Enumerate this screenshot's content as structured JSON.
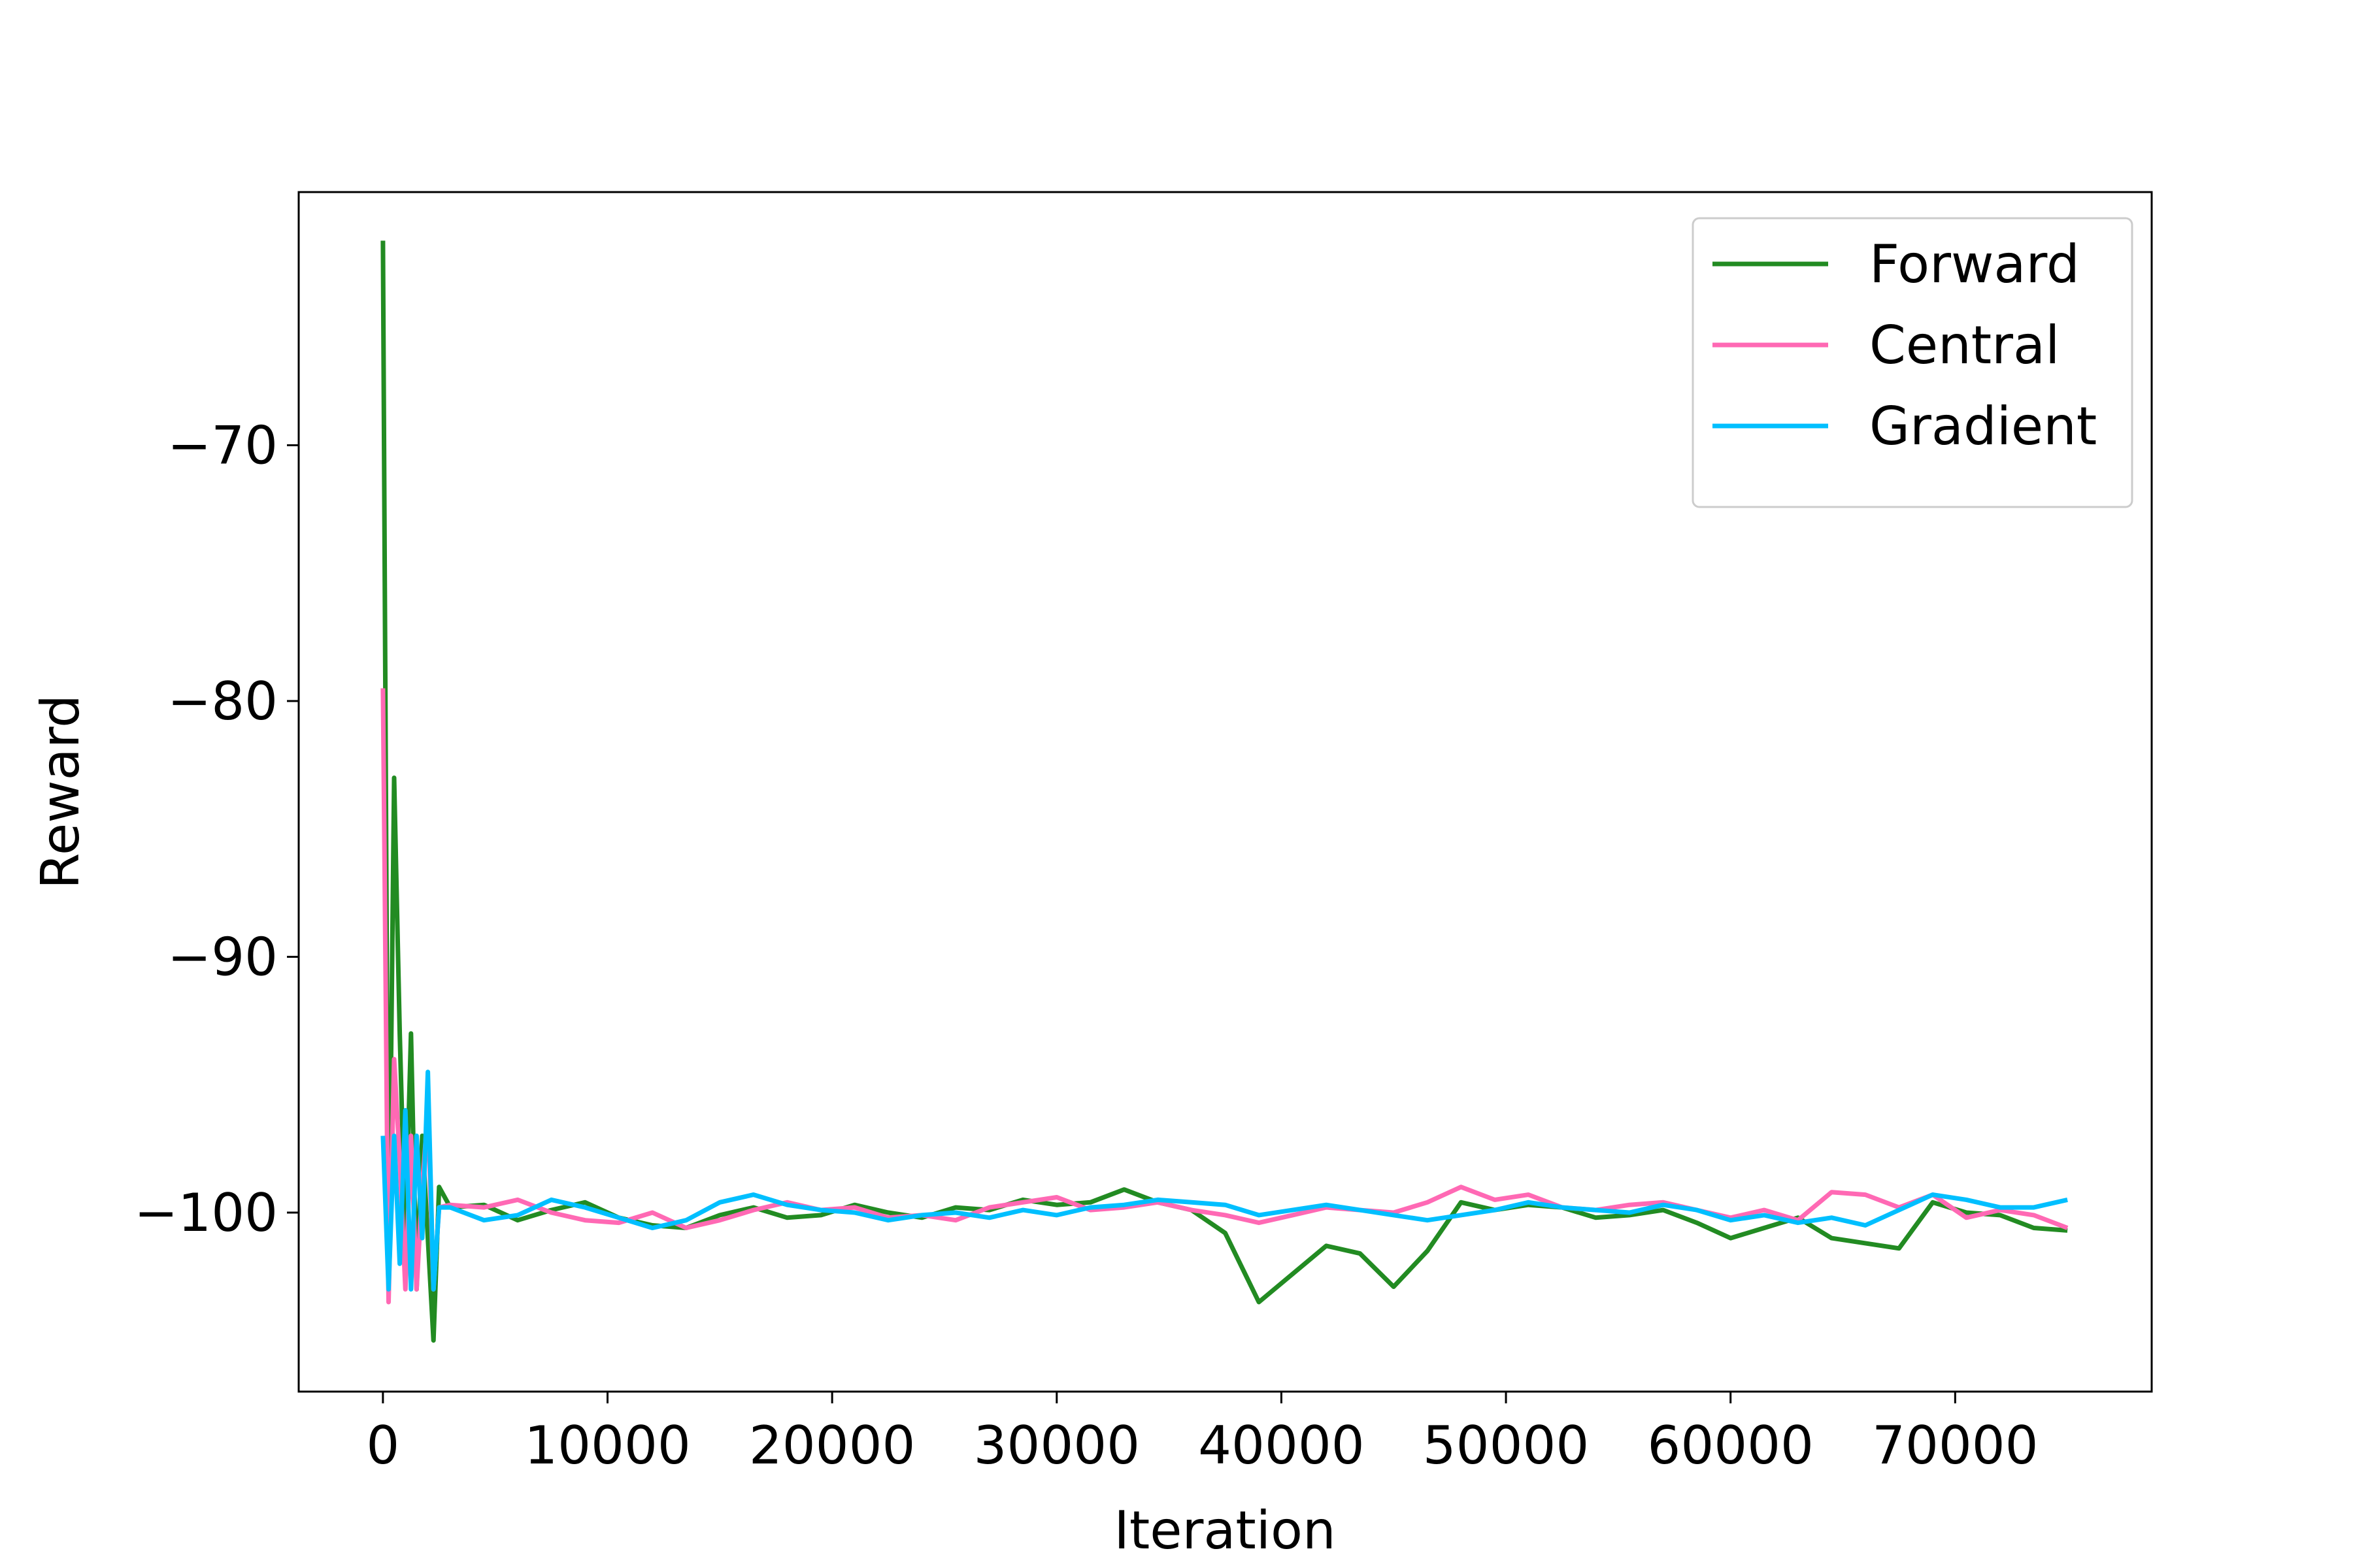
{
  "chart_data": {
    "type": "line",
    "xlabel": "Iteration",
    "ylabel": "Reward",
    "x": [
      0,
      250,
      500,
      750,
      1000,
      1250,
      1500,
      1750,
      2000,
      2250,
      2500,
      3000,
      4500,
      6000,
      7500,
      9000,
      10500,
      12000,
      13500,
      15000,
      16500,
      18000,
      19500,
      21000,
      22500,
      24000,
      25500,
      27000,
      28500,
      30000,
      31500,
      33000,
      34500,
      36000,
      37500,
      39000,
      40500,
      42000,
      43500,
      45000,
      46500,
      48000,
      49500,
      51000,
      52500,
      54000,
      55500,
      57000,
      58500,
      60000,
      61500,
      63000,
      64500,
      66000,
      67500,
      69000,
      70500,
      72000,
      73500,
      75000
    ],
    "series": [
      {
        "name": "Forward",
        "color": "#228b22",
        "values": [
          -62,
          -103,
          -83,
          -93,
          -101,
          -93,
          -103,
          -97,
          -101,
          -105,
          -99,
          -99.8,
          -99.7,
          -100.3,
          -99.9,
          -99.6,
          -100.2,
          -100.5,
          -100.6,
          -100.1,
          -99.8,
          -100.2,
          -100.1,
          -99.7,
          -100.0,
          -100.2,
          -99.8,
          -99.9,
          -99.5,
          -99.7,
          -99.6,
          -99.1,
          -99.6,
          -99.9,
          -100.8,
          -103.5,
          -102.4,
          -101.3,
          -101.6,
          -102.9,
          -101.5,
          -99.6,
          -99.9,
          -99.7,
          -99.8,
          -100.2,
          -100.1,
          -99.9,
          -100.4,
          -101.0,
          -100.6,
          -100.2,
          -101.0,
          -101.2,
          -101.4,
          -99.6,
          -100.0,
          -100.1,
          -100.6,
          -100.7
        ]
      },
      {
        "name": "Central",
        "color": "#ff69b4",
        "values": [
          -79.5,
          -103.5,
          -94,
          -98,
          -103,
          -97,
          -103,
          -99,
          -96,
          -103,
          -99.8,
          -99.7,
          -99.8,
          -99.5,
          -100.0,
          -100.3,
          -100.4,
          -100.0,
          -100.6,
          -100.3,
          -99.9,
          -99.6,
          -99.9,
          -99.8,
          -100.2,
          -100.1,
          -100.3,
          -99.8,
          -99.6,
          -99.4,
          -99.9,
          -99.8,
          -99.6,
          -99.9,
          -100.1,
          -100.4,
          -100.1,
          -99.8,
          -99.9,
          -100.0,
          -99.6,
          -99.0,
          -99.5,
          -99.3,
          -99.8,
          -99.9,
          -99.7,
          -99.6,
          -99.9,
          -100.2,
          -99.9,
          -100.3,
          -99.2,
          -99.3,
          -99.8,
          -99.3,
          -100.2,
          -99.9,
          -100.1,
          -100.6
        ]
      },
      {
        "name": "Gradient",
        "color": "#00bfff",
        "values": [
          -97,
          -103,
          -97,
          -102,
          -96,
          -103,
          -97,
          -101,
          -94.5,
          -103,
          -99.8,
          -99.8,
          -100.3,
          -100.1,
          -99.5,
          -99.8,
          -100.2,
          -100.6,
          -100.3,
          -99.6,
          -99.3,
          -99.7,
          -99.9,
          -100.0,
          -100.3,
          -100.1,
          -100.0,
          -100.2,
          -99.9,
          -100.1,
          -99.8,
          -99.7,
          -99.5,
          -99.6,
          -99.7,
          -100.1,
          -99.9,
          -99.7,
          -99.9,
          -100.1,
          -100.3,
          -100.1,
          -99.9,
          -99.6,
          -99.8,
          -99.9,
          -100.0,
          -99.7,
          -99.9,
          -100.3,
          -100.1,
          -100.4,
          -100.2,
          -100.5,
          -99.9,
          -99.3,
          -99.5,
          -99.8,
          -99.8,
          -99.5
        ]
      }
    ],
    "xlim": [
      -3750,
      78750
    ],
    "xticks": [
      0,
      10000,
      20000,
      30000,
      40000,
      50000,
      60000,
      70000
    ],
    "ylim": [
      -107.0,
      -60.1
    ],
    "yticks": [
      {
        "value": -100,
        "label": "−100"
      },
      {
        "value": -90,
        "label": "−90"
      },
      {
        "value": -80,
        "label": "−80"
      },
      {
        "value": -70,
        "label": "−70"
      }
    ],
    "legend": "upper right"
  }
}
